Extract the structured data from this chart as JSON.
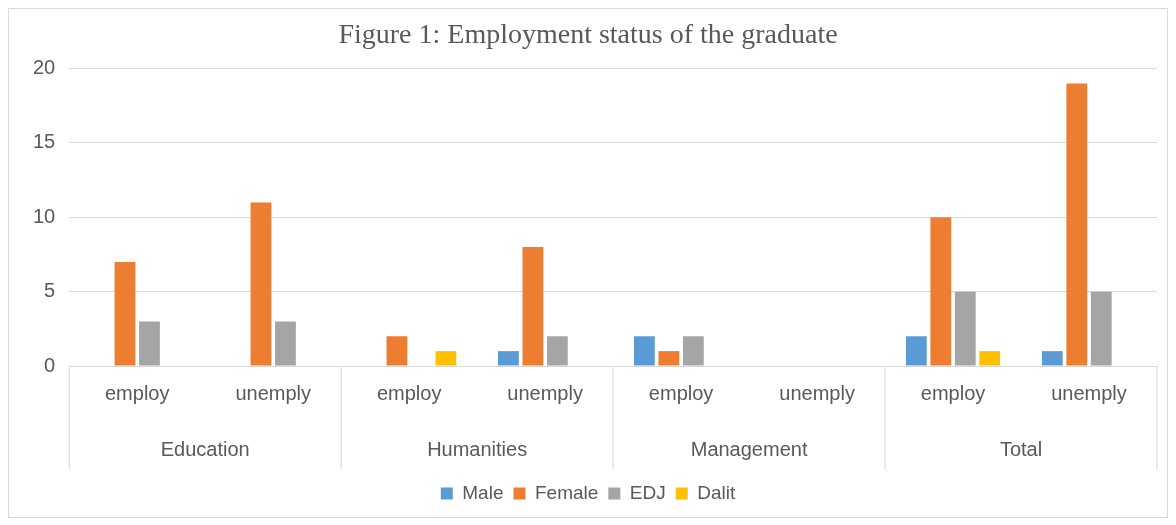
{
  "chart_data": {
    "type": "bar",
    "title": "Figure 1: Employment status of the graduate",
    "categories": [
      "employ",
      "unemply",
      "employ",
      "unemply",
      "employ",
      "unemply",
      "employ",
      "unemply"
    ],
    "annotations": [
      "Education",
      "Humanities",
      "Management",
      "Total"
    ],
    "series": [
      {
        "name": "Male",
        "color": "#5b9bd5",
        "values": [
          0,
          0,
          0,
          1,
          2,
          0,
          2,
          1
        ]
      },
      {
        "name": "Female",
        "color": "#ed7d31",
        "values": [
          7,
          11,
          2,
          8,
          1,
          0,
          10,
          19
        ]
      },
      {
        "name": "EDJ",
        "color": "#a5a5a5",
        "values": [
          3,
          3,
          0,
          2,
          2,
          0,
          5,
          5
        ]
      },
      {
        "name": "Dalit",
        "color": "#ffc000",
        "values": [
          0,
          0,
          1,
          0,
          0,
          0,
          1,
          0
        ]
      }
    ],
    "ylim": [
      0,
      20
    ],
    "yticks": [
      0,
      5,
      10,
      15,
      20
    ],
    "grid": "y",
    "legend": "bottom"
  }
}
